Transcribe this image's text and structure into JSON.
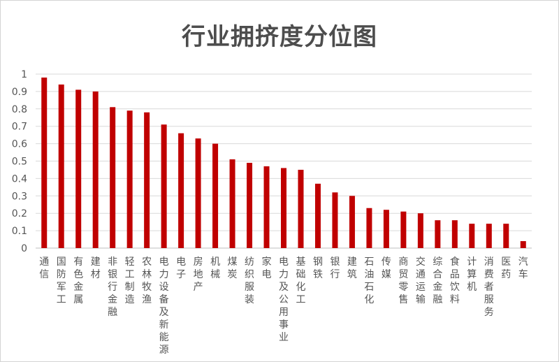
{
  "chart_data": {
    "type": "bar",
    "title": "行业拥挤度分位图",
    "xlabel": "",
    "ylabel": "",
    "ylim": [
      0,
      1
    ],
    "yticks": [
      "0",
      "0.1",
      "0.2",
      "0.3",
      "0.4",
      "0.5",
      "0.6",
      "0.7",
      "0.8",
      "0.9",
      "1"
    ],
    "grid": true,
    "bar_color": "#c00000",
    "categories": [
      "通信",
      "国防军工",
      "有色金属",
      "建材",
      "非银行金融",
      "轻工制造",
      "农林牧渔",
      "电力设备及新能源",
      "电子",
      "房地产",
      "机械",
      "煤炭",
      "纺织服装",
      "家电",
      "电力及公用事业",
      "基础化工",
      "钢铁",
      "银行",
      "建筑",
      "石油石化",
      "传媒",
      "商贸零售",
      "交通运输",
      "综合金融",
      "食品饮料",
      "计算机",
      "消费者服务",
      "医药",
      "汽车"
    ],
    "values": [
      0.98,
      0.94,
      0.91,
      0.9,
      0.81,
      0.79,
      0.78,
      0.71,
      0.66,
      0.63,
      0.6,
      0.51,
      0.49,
      0.47,
      0.46,
      0.45,
      0.37,
      0.32,
      0.3,
      0.23,
      0.22,
      0.21,
      0.2,
      0.16,
      0.16,
      0.14,
      0.14,
      0.14,
      0.04
    ]
  }
}
